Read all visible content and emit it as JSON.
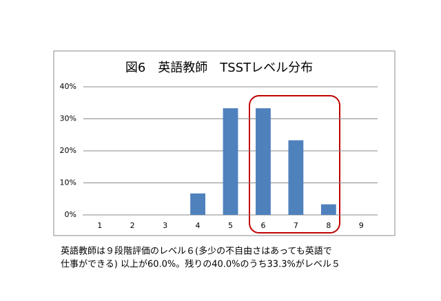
{
  "chart_data": {
    "type": "bar",
    "title": "図6　英語教師　TSSTレベル分布",
    "categories": [
      "1",
      "2",
      "3",
      "4",
      "5",
      "6",
      "7",
      "8",
      "9"
    ],
    "values": [
      0,
      0,
      0,
      6.7,
      33.3,
      33.3,
      23.3,
      3.3,
      0
    ],
    "color": "#4f81bd",
    "ylim": [
      0,
      40
    ],
    "yticks": [
      {
        "value": 0,
        "label": "0%"
      },
      {
        "value": 10,
        "label": "10%"
      },
      {
        "value": 20,
        "label": "20%"
      },
      {
        "value": 30,
        "label": "30%"
      },
      {
        "value": 40,
        "label": "40%"
      }
    ],
    "grid": true,
    "caption": [
      "英語教師は９段階評価のレベル６(多少の不自由さはあっても英語で",
      "仕事ができる) 以上が60.0%。残りの40.0%のうち33.3%がレベル５"
    ]
  }
}
